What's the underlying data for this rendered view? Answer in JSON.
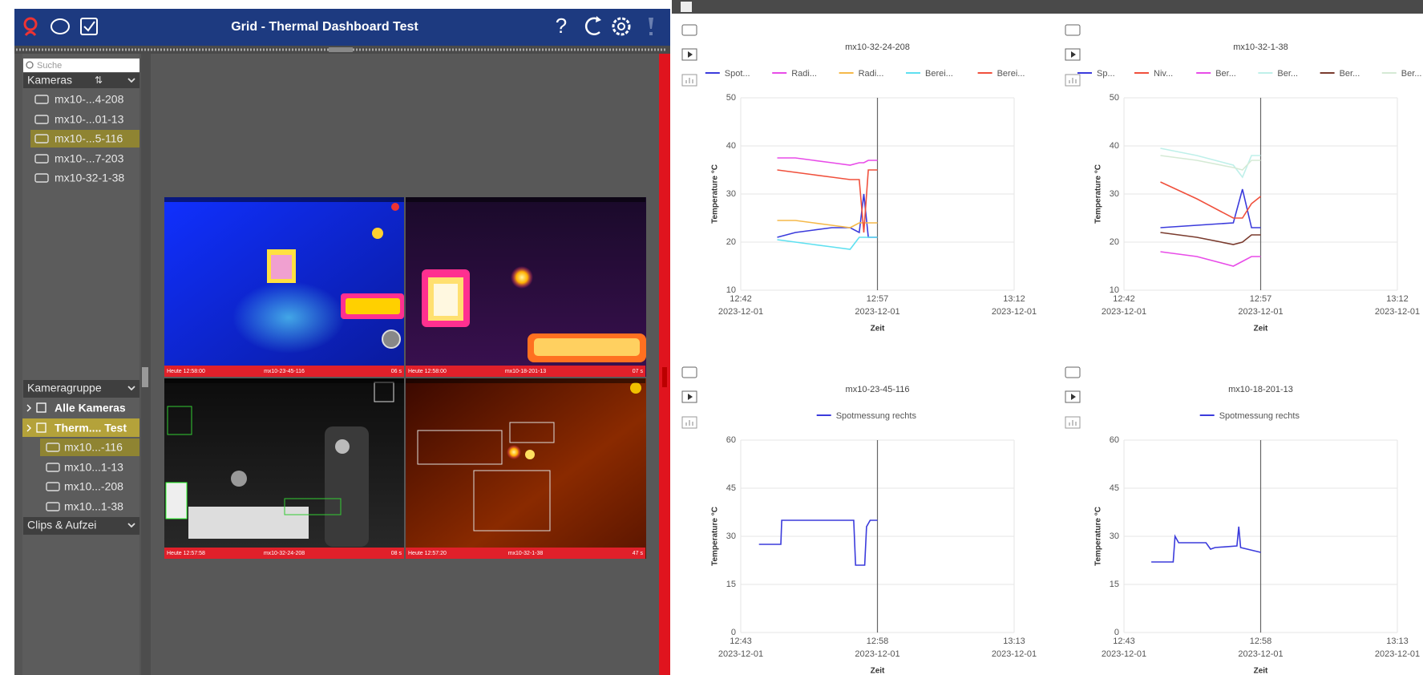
{
  "header": {
    "title": "Grid - Thermal Dashboard Test",
    "help_icon": "?"
  },
  "sidebar": {
    "search_placeholder": "Suche",
    "cameras_label": "Kameras",
    "cameras": [
      "mx10-...4-208",
      "mx10-...01-13",
      "mx10-...5-116",
      "mx10-...7-203",
      "mx10-32-1-38"
    ],
    "groups_label": "Kameragruppe",
    "groups": [
      "Alle Kameras",
      "Therm.... Test"
    ],
    "group_cameras": [
      "mx10...-116",
      "mx10...1-13",
      "mx10...-208",
      "mx10...1-38"
    ],
    "clips_label": "Clips & Aufzei"
  },
  "tiles": [
    {
      "time": "Heute 12:58:00",
      "camera": "mx10-23-45-116",
      "age": "06 s"
    },
    {
      "time": "Heute 12:58:00",
      "camera": "mx10-18-201-13",
      "age": "07 s"
    },
    {
      "time": "Heute 12:57:58",
      "camera": "mx10-32-24-208",
      "age": "08 s"
    },
    {
      "time": "Heute 12:57:20",
      "camera": "mx10-32-1-38",
      "age": "47 s"
    }
  ],
  "charts": [
    {
      "type": "line",
      "title": "mx10-32-24-208",
      "xlabel": "Zeit",
      "ylabel": "Temperature °C",
      "xlim": [
        0,
        30
      ],
      "xticks": [
        {
          "value": 0,
          "label": "12:42",
          "date": "2023-12-01"
        },
        {
          "value": 15,
          "label": "12:57",
          "date": "2023-12-01"
        },
        {
          "value": 30,
          "label": "13:12",
          "date": "2023-12-01"
        }
      ],
      "ylim": [
        10,
        50
      ],
      "yticks": [
        10,
        20,
        30,
        40,
        50
      ],
      "marker_x": 15,
      "x": [
        4,
        6,
        8,
        10,
        12,
        13,
        13.5,
        14,
        15
      ],
      "series": [
        {
          "name": "Spot...",
          "color": "#3b3bdc",
          "values": [
            21,
            22,
            22.5,
            23,
            23,
            22,
            30,
            21,
            21
          ]
        },
        {
          "name": "Radi...",
          "color": "#e84ce8",
          "values": [
            37.5,
            37.5,
            37,
            36.5,
            36,
            36.5,
            36.5,
            37,
            37
          ]
        },
        {
          "name": "Radi...",
          "color": "#f5b94a",
          "values": [
            24.5,
            24.5,
            24,
            23.5,
            23,
            24,
            24,
            24,
            24
          ]
        },
        {
          "name": "Berei...",
          "color": "#5ee0f0",
          "values": [
            20.5,
            20,
            19.5,
            19,
            18.5,
            21,
            21,
            21,
            21
          ]
        },
        {
          "name": "Berei...",
          "color": "#f0503c",
          "values": [
            35,
            34.5,
            34,
            33.5,
            33,
            33,
            22,
            35,
            35
          ]
        }
      ]
    },
    {
      "type": "line",
      "title": "mx10-32-1-38",
      "xlabel": "Zeit",
      "ylabel": "Temperature °C",
      "xlim": [
        0,
        30
      ],
      "xticks": [
        {
          "value": 0,
          "label": "12:42",
          "date": "2023-12-01"
        },
        {
          "value": 15,
          "label": "12:57",
          "date": "2023-12-01"
        },
        {
          "value": 30,
          "label": "13:12",
          "date": "2023-12-01"
        }
      ],
      "ylim": [
        10,
        50
      ],
      "yticks": [
        10,
        20,
        30,
        40,
        50
      ],
      "marker_x": 15,
      "x": [
        4,
        8,
        12,
        13,
        14,
        15
      ],
      "series": [
        {
          "name": "Sp...",
          "color": "#3b3bdc",
          "values": [
            23,
            23.5,
            24,
            31,
            23,
            23
          ]
        },
        {
          "name": "Niv...",
          "color": "#f0503c",
          "values": [
            32.5,
            29,
            25,
            25,
            28,
            29.5
          ]
        },
        {
          "name": "Ber...",
          "color": "#e84ce8",
          "values": [
            18,
            17,
            15,
            16,
            17,
            17
          ]
        },
        {
          "name": "Ber...",
          "color": "#bff0ea",
          "values": [
            39.5,
            38,
            36,
            33.5,
            38,
            38
          ]
        },
        {
          "name": "Ber...",
          "color": "#7a3b2e",
          "values": [
            22,
            21,
            19.5,
            20,
            21.5,
            21.5
          ]
        },
        {
          "name": "Ber...",
          "color": "#d5ead5",
          "values": [
            38,
            37,
            35.5,
            35,
            37,
            37
          ]
        }
      ]
    },
    {
      "type": "line",
      "title": "mx10-23-45-116",
      "xlabel": "Zeit",
      "ylabel": "Temperature °C",
      "xlim": [
        0,
        30
      ],
      "xticks": [
        {
          "value": 0,
          "label": "12:43",
          "date": "2023-12-01"
        },
        {
          "value": 15,
          "label": "12:58",
          "date": "2023-12-01"
        },
        {
          "value": 30,
          "label": "13:13",
          "date": "2023-12-01"
        }
      ],
      "ylim": [
        0,
        60
      ],
      "yticks": [
        0,
        15,
        30,
        45,
        60
      ],
      "marker_x": 15,
      "x": [
        2,
        4.4,
        4.5,
        12.4,
        12.6,
        13.6,
        13.8,
        14.2,
        15
      ],
      "series": [
        {
          "name": "Spotmessung rechts",
          "color": "#3b3bdc",
          "values": [
            27.5,
            27.5,
            35,
            35,
            21,
            21,
            33,
            35,
            35
          ]
        }
      ]
    },
    {
      "type": "line",
      "title": "mx10-18-201-13",
      "xlabel": "Zeit",
      "ylabel": "Temperature °C",
      "xlim": [
        0,
        30
      ],
      "xticks": [
        {
          "value": 0,
          "label": "12:43",
          "date": "2023-12-01"
        },
        {
          "value": 15,
          "label": "12:58",
          "date": "2023-12-01"
        },
        {
          "value": 30,
          "label": "13:13",
          "date": "2023-12-01"
        }
      ],
      "ylim": [
        0,
        60
      ],
      "yticks": [
        0,
        15,
        30,
        45,
        60
      ],
      "marker_x": 15,
      "x": [
        3,
        5.4,
        5.6,
        6,
        9,
        9.5,
        10,
        12.4,
        12.6,
        12.8,
        15
      ],
      "series": [
        {
          "name": "Spotmessung rechts",
          "color": "#3b3bdc",
          "values": [
            22,
            22,
            30,
            28,
            28,
            26,
            26.5,
            27,
            33,
            26.5,
            25
          ]
        }
      ]
    }
  ]
}
